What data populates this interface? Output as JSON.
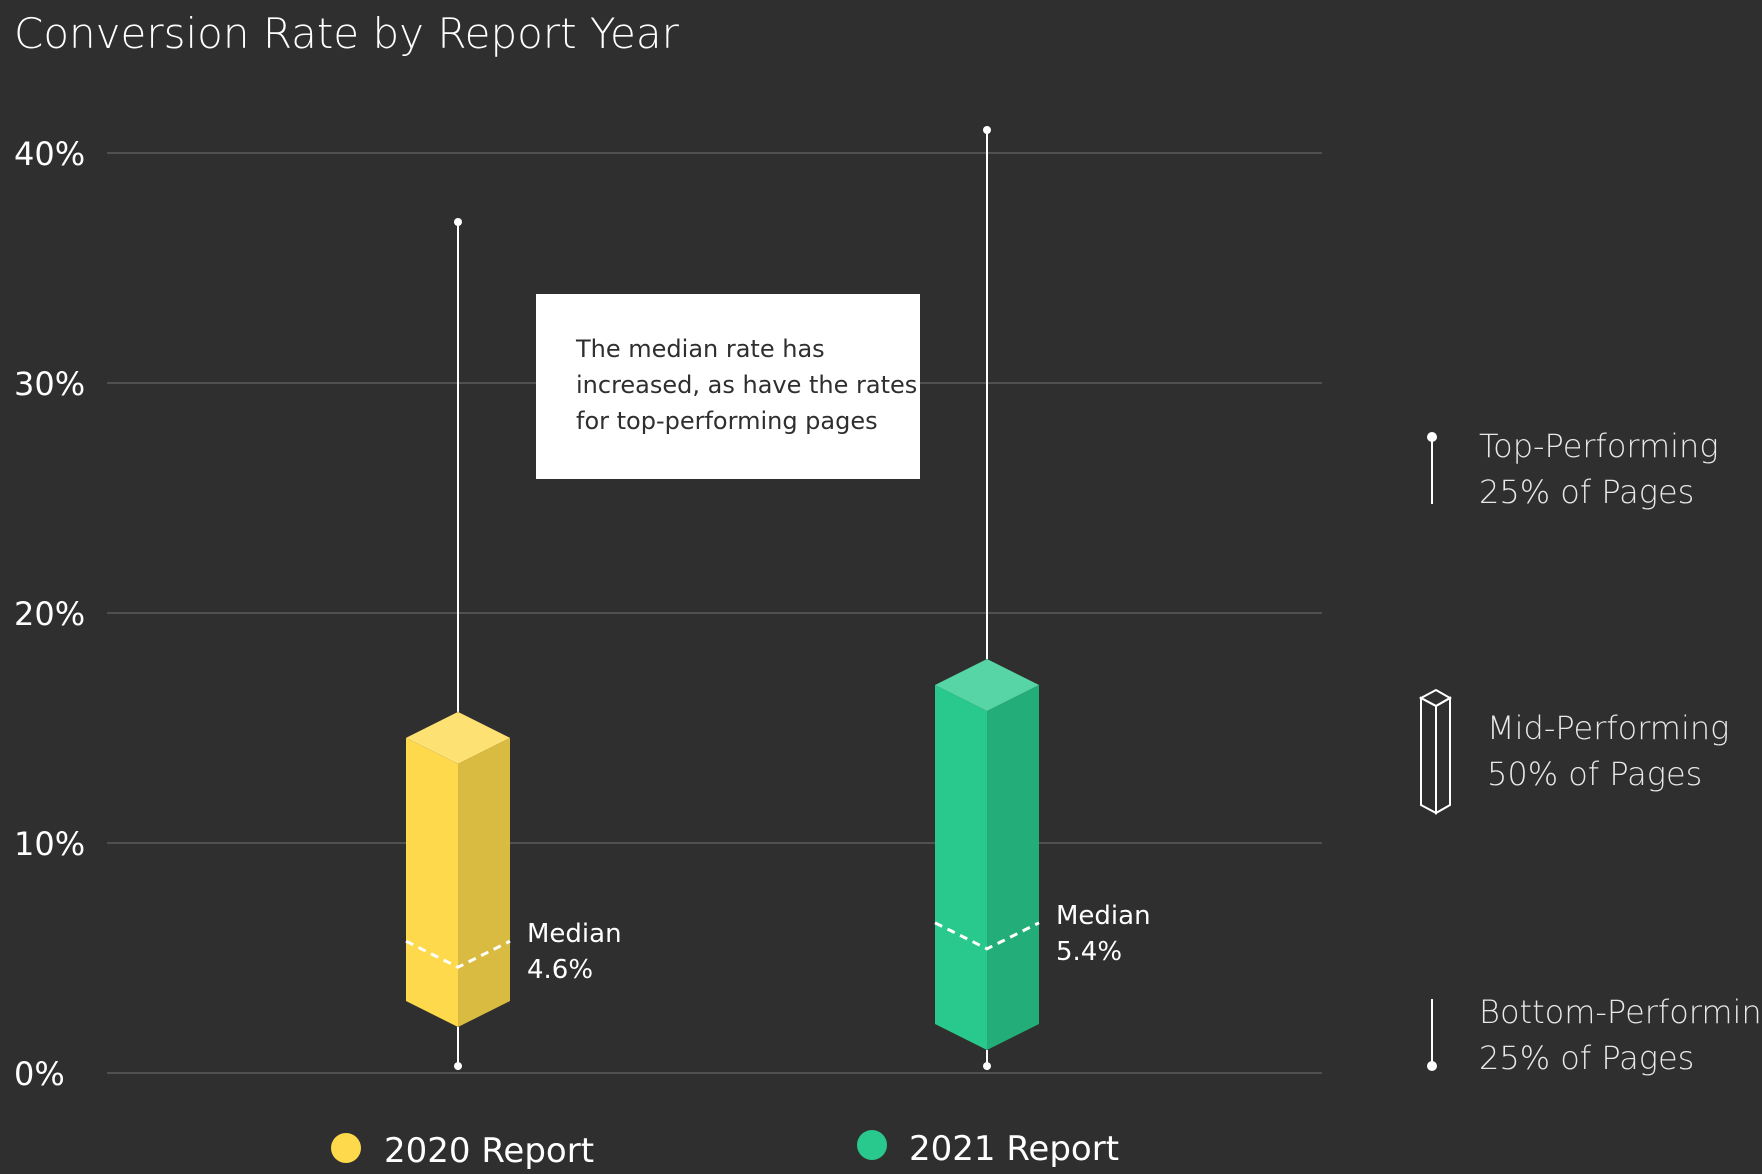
{
  "chart_data": {
    "type": "box",
    "title": "Conversion Rate by Report Year",
    "xlabel": "",
    "ylabel": "",
    "ylim": [
      0,
      40
    ],
    "yticks": [
      "0%",
      "10%",
      "20%",
      "30%",
      "40%"
    ],
    "grid": true,
    "series": [
      {
        "name": "2020 Report",
        "color": "#fdd94b",
        "min": 0.3,
        "q1": 2.0,
        "median": 4.6,
        "q3": 15.7,
        "max": 37.0,
        "median_label": "Median",
        "median_value": "4.6%"
      },
      {
        "name": "2021 Report",
        "color": "#29c98d",
        "min": 0.3,
        "q1": 1.0,
        "median": 5.4,
        "q3": 18.0,
        "max": 41.0,
        "median_label": "Median",
        "median_value": "5.4%"
      }
    ],
    "annotation": "The median rate has increased, as have the rates for top-performing pages",
    "key": [
      {
        "line1": "Top-Performing",
        "line2": "25% of Pages"
      },
      {
        "line1": "Mid-Performing",
        "line2": "50% of Pages"
      },
      {
        "line1": "Bottom-Performing",
        "line2": "25% of Pages"
      }
    ],
    "legend_position": "bottom"
  }
}
